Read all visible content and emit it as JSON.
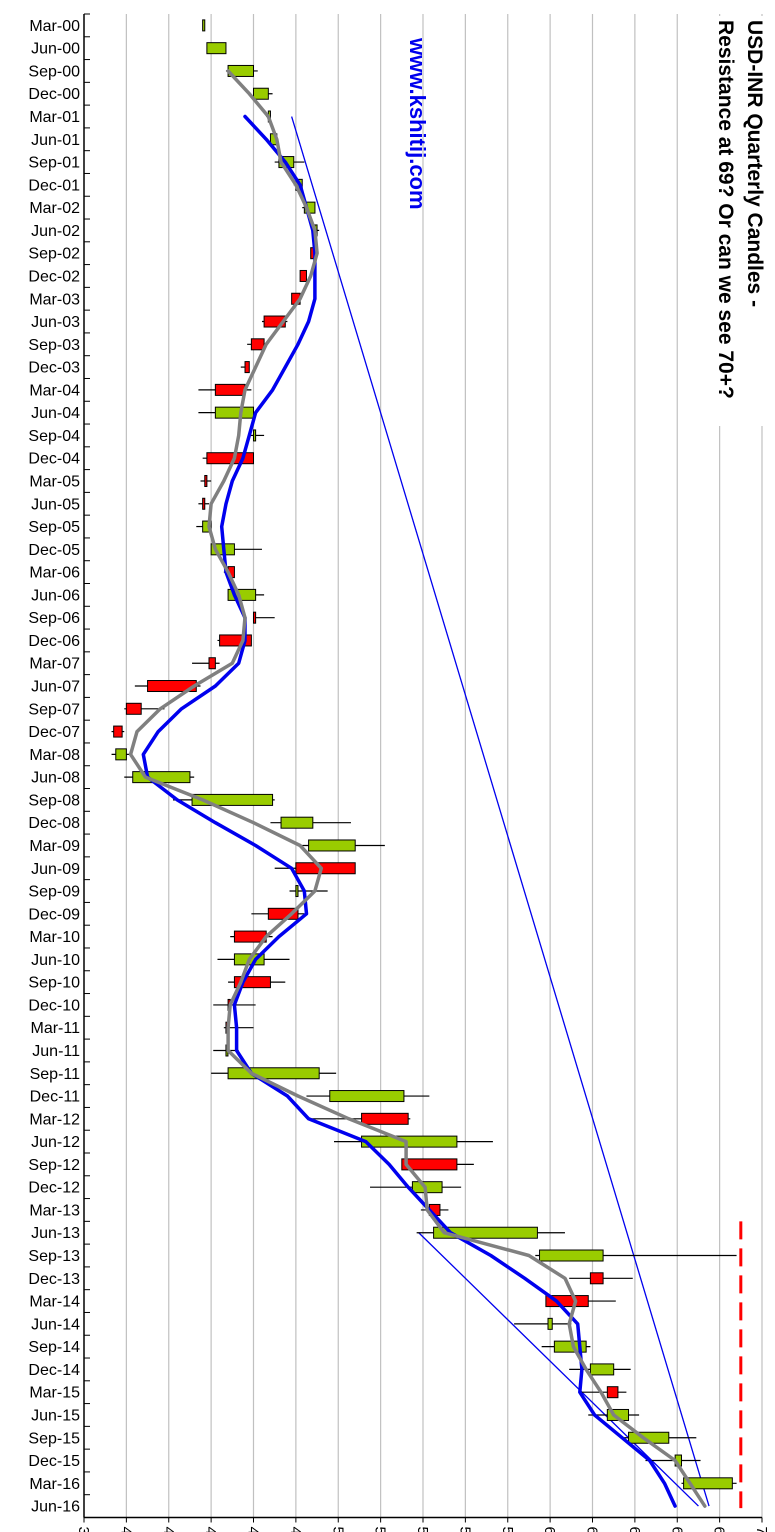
{
  "chart_data": {
    "type": "candlestick",
    "title_line1": "USD-INR Quarterly Candles -",
    "title_line2": "Resistance at 69? Or can we see 70+?",
    "website": "www.kshitij.com",
    "value_axis": {
      "min": 38,
      "max": 70,
      "step": 2,
      "ticks": [
        38,
        40,
        42,
        44,
        46,
        48,
        50,
        52,
        54,
        56,
        58,
        60,
        62,
        64,
        66,
        68,
        70
      ]
    },
    "quarters": [
      "Mar-00",
      "Jun-00",
      "Sep-00",
      "Dec-00",
      "Mar-01",
      "Jun-01",
      "Sep-01",
      "Dec-01",
      "Mar-02",
      "Jun-02",
      "Sep-02",
      "Dec-02",
      "Mar-03",
      "Jun-03",
      "Sep-03",
      "Dec-03",
      "Mar-04",
      "Jun-04",
      "Sep-04",
      "Dec-04",
      "Mar-05",
      "Jun-05",
      "Sep-05",
      "Dec-05",
      "Mar-06",
      "Jun-06",
      "Sep-06",
      "Dec-06",
      "Mar-07",
      "Jun-07",
      "Sep-07",
      "Dec-07",
      "Mar-08",
      "Jun-08",
      "Sep-08",
      "Dec-08",
      "Mar-09",
      "Jun-09",
      "Sep-09",
      "Dec-09",
      "Mar-10",
      "Jun-10",
      "Sep-10",
      "Dec-10",
      "Mar-11",
      "Jun-11",
      "Sep-11",
      "Dec-11",
      "Mar-12",
      "Jun-12",
      "Sep-12",
      "Dec-12",
      "Mar-13",
      "Jun-13",
      "Sep-13",
      "Dec-13",
      "Mar-14",
      "Jun-14",
      "Sep-14",
      "Dec-14",
      "Mar-15",
      "Jun-15",
      "Sep-15",
      "Dec-15",
      "Mar-16",
      "Jun-16"
    ],
    "candles": [
      {
        "q": "Mar-00",
        "o": 43.6,
        "h": 43.7,
        "l": 43.6,
        "c": 43.7
      },
      {
        "q": "Jun-00",
        "o": 43.8,
        "h": 44.7,
        "l": 43.8,
        "c": 44.7
      },
      {
        "q": "Sep-00",
        "o": 44.8,
        "h": 46.2,
        "l": 44.7,
        "c": 46.0
      },
      {
        "q": "Dec-00",
        "o": 46.0,
        "h": 46.9,
        "l": 46.0,
        "c": 46.7
      },
      {
        "q": "Mar-01",
        "o": 46.7,
        "h": 46.8,
        "l": 46.6,
        "c": 46.8
      },
      {
        "q": "Jun-01",
        "o": 46.8,
        "h": 47.1,
        "l": 46.8,
        "c": 47.1
      },
      {
        "q": "Sep-01",
        "o": 47.2,
        "h": 48.4,
        "l": 47.0,
        "c": 47.9
      },
      {
        "q": "Dec-01",
        "o": 48.0,
        "h": 48.3,
        "l": 47.9,
        "c": 48.3
      },
      {
        "q": "Mar-02",
        "o": 48.4,
        "h": 48.9,
        "l": 48.3,
        "c": 48.9
      },
      {
        "q": "Jun-02",
        "o": 48.9,
        "h": 49.1,
        "l": 48.8,
        "c": 49.0
      },
      {
        "q": "Sep-02",
        "o": 48.9,
        "h": 49.0,
        "l": 48.7,
        "c": 48.7
      },
      {
        "q": "Dec-02",
        "o": 48.5,
        "h": 48.5,
        "l": 48.2,
        "c": 48.2
      },
      {
        "q": "Mar-03",
        "o": 48.2,
        "h": 48.2,
        "l": 47.8,
        "c": 47.8
      },
      {
        "q": "Jun-03",
        "o": 47.5,
        "h": 47.6,
        "l": 46.4,
        "c": 46.5
      },
      {
        "q": "Sep-03",
        "o": 46.5,
        "h": 46.6,
        "l": 45.7,
        "c": 45.9
      },
      {
        "q": "Dec-03",
        "o": 45.8,
        "h": 45.8,
        "l": 45.4,
        "c": 45.6
      },
      {
        "q": "Mar-04",
        "o": 45.6,
        "h": 45.9,
        "l": 43.4,
        "c": 44.2
      },
      {
        "q": "Jun-04",
        "o": 44.2,
        "h": 46.1,
        "l": 43.4,
        "c": 46.0
      },
      {
        "q": "Sep-04",
        "o": 46.0,
        "h": 46.5,
        "l": 45.8,
        "c": 46.1
      },
      {
        "q": "Dec-04",
        "o": 46.0,
        "h": 46.0,
        "l": 43.6,
        "c": 43.8
      },
      {
        "q": "Mar-05",
        "o": 43.8,
        "h": 44.0,
        "l": 43.5,
        "c": 43.7
      },
      {
        "q": "Jun-05",
        "o": 43.7,
        "h": 43.9,
        "l": 43.4,
        "c": 43.6
      },
      {
        "q": "Sep-05",
        "o": 43.6,
        "h": 44.0,
        "l": 43.3,
        "c": 44.0
      },
      {
        "q": "Dec-05",
        "o": 44.0,
        "h": 46.4,
        "l": 44.0,
        "c": 45.1
      },
      {
        "q": "Mar-06",
        "o": 45.1,
        "h": 45.1,
        "l": 44.6,
        "c": 44.8
      },
      {
        "q": "Jun-06",
        "o": 44.8,
        "h": 46.5,
        "l": 44.8,
        "c": 46.1
      },
      {
        "q": "Sep-06",
        "o": 46.1,
        "h": 47.0,
        "l": 46.0,
        "c": 46.0
      },
      {
        "q": "Dec-06",
        "o": 45.9,
        "h": 45.9,
        "l": 44.3,
        "c": 44.4
      },
      {
        "q": "Mar-07",
        "o": 44.2,
        "h": 44.4,
        "l": 43.1,
        "c": 43.9
      },
      {
        "q": "Jun-07",
        "o": 43.3,
        "h": 43.5,
        "l": 40.4,
        "c": 41.0
      },
      {
        "q": "Sep-07",
        "o": 40.7,
        "h": 41.8,
        "l": 39.9,
        "c": 40.0
      },
      {
        "q": "Dec-07",
        "o": 39.8,
        "h": 39.9,
        "l": 39.3,
        "c": 39.4
      },
      {
        "q": "Mar-08",
        "o": 39.5,
        "h": 40.2,
        "l": 39.3,
        "c": 40.0
      },
      {
        "q": "Jun-08",
        "o": 40.3,
        "h": 43.2,
        "l": 39.9,
        "c": 43.0
      },
      {
        "q": "Sep-08",
        "o": 43.1,
        "h": 47.0,
        "l": 42.2,
        "c": 46.9
      },
      {
        "q": "Dec-08",
        "o": 47.3,
        "h": 50.6,
        "l": 46.8,
        "c": 48.8
      },
      {
        "q": "Mar-09",
        "o": 48.6,
        "h": 52.2,
        "l": 48.3,
        "c": 50.8
      },
      {
        "q": "Jun-09",
        "o": 50.8,
        "h": 50.8,
        "l": 47.0,
        "c": 48.0
      },
      {
        "q": "Sep-09",
        "o": 48.0,
        "h": 49.5,
        "l": 47.7,
        "c": 48.1
      },
      {
        "q": "Dec-09",
        "o": 48.1,
        "h": 48.4,
        "l": 45.9,
        "c": 46.7
      },
      {
        "q": "Mar-10",
        "o": 46.6,
        "h": 46.9,
        "l": 44.9,
        "c": 45.1
      },
      {
        "q": "Jun-10",
        "o": 45.1,
        "h": 47.7,
        "l": 44.3,
        "c": 46.5
      },
      {
        "q": "Sep-10",
        "o": 46.8,
        "h": 47.5,
        "l": 44.8,
        "c": 45.1
      },
      {
        "q": "Dec-10",
        "o": 44.9,
        "h": 46.1,
        "l": 44.1,
        "c": 44.8
      },
      {
        "q": "Mar-11",
        "o": 44.8,
        "h": 46.0,
        "l": 44.6,
        "c": 44.7
      },
      {
        "q": "Jun-11",
        "o": 44.7,
        "h": 45.3,
        "l": 44.1,
        "c": 44.7
      },
      {
        "q": "Sep-11",
        "o": 44.8,
        "h": 49.9,
        "l": 44.0,
        "c": 49.1
      },
      {
        "q": "Dec-11",
        "o": 49.6,
        "h": 54.3,
        "l": 48.5,
        "c": 53.1
      },
      {
        "q": "Mar-12",
        "o": 53.3,
        "h": 53.4,
        "l": 48.6,
        "c": 51.1
      },
      {
        "q": "Jun-12",
        "o": 51.1,
        "h": 57.3,
        "l": 49.8,
        "c": 55.6
      },
      {
        "q": "Sep-12",
        "o": 55.6,
        "h": 56.4,
        "l": 53.2,
        "c": 53.0
      },
      {
        "q": "Dec-12",
        "o": 53.5,
        "h": 55.8,
        "l": 51.5,
        "c": 54.9
      },
      {
        "q": "Mar-13",
        "o": 54.8,
        "h": 55.2,
        "l": 53.9,
        "c": 54.3
      },
      {
        "q": "Jun-13",
        "o": 54.5,
        "h": 60.7,
        "l": 53.7,
        "c": 59.4
      },
      {
        "q": "Sep-13",
        "o": 59.5,
        "h": 68.8,
        "l": 59.3,
        "c": 62.5
      },
      {
        "q": "Dec-13",
        "o": 62.5,
        "h": 63.9,
        "l": 60.9,
        "c": 61.9
      },
      {
        "q": "Mar-14",
        "o": 61.8,
        "h": 63.1,
        "l": 59.8,
        "c": 59.8
      },
      {
        "q": "Jun-14",
        "o": 59.9,
        "h": 61.0,
        "l": 58.3,
        "c": 60.1
      },
      {
        "q": "Sep-14",
        "o": 60.2,
        "h": 61.9,
        "l": 59.6,
        "c": 61.7
      },
      {
        "q": "Dec-14",
        "o": 61.9,
        "h": 63.8,
        "l": 60.9,
        "c": 63.0
      },
      {
        "q": "Mar-15",
        "o": 63.2,
        "h": 63.6,
        "l": 61.4,
        "c": 62.7
      },
      {
        "q": "Jun-15",
        "o": 62.7,
        "h": 64.2,
        "l": 61.8,
        "c": 63.7
      },
      {
        "q": "Sep-15",
        "o": 63.7,
        "h": 66.9,
        "l": 63.4,
        "c": 65.6
      },
      {
        "q": "Dec-15",
        "o": 65.9,
        "h": 67.1,
        "l": 64.5,
        "c": 66.2
      },
      {
        "q": "Mar-16",
        "o": 66.3,
        "h": 68.8,
        "l": 66.2,
        "c": 68.6
      },
      {
        "q": "Jun-16",
        "o": null,
        "h": null,
        "l": null,
        "c": null
      }
    ],
    "avg_line_gray": [
      [
        "Sep-00",
        44.8
      ],
      [
        "Dec-00",
        45.8
      ],
      [
        "Mar-01",
        46.7
      ],
      [
        "Jun-01",
        47.1
      ],
      [
        "Sep-01",
        47.3
      ],
      [
        "Dec-01",
        48.0
      ],
      [
        "Mar-02",
        48.5
      ],
      [
        "Jun-02",
        48.9
      ],
      [
        "Sep-02",
        49.0
      ],
      [
        "Dec-02",
        48.7
      ],
      [
        "Mar-03",
        48.2
      ],
      [
        "Jun-03",
        47.4
      ],
      [
        "Sep-03",
        46.6
      ],
      [
        "Dec-03",
        46.1
      ],
      [
        "Mar-04",
        45.6
      ],
      [
        "Jun-04",
        45.4
      ],
      [
        "Sep-04",
        45.3
      ],
      [
        "Dec-04",
        45.1
      ],
      [
        "Mar-05",
        44.6
      ],
      [
        "Jun-05",
        44.0
      ],
      [
        "Sep-05",
        43.9
      ],
      [
        "Dec-05",
        44.2
      ],
      [
        "Mar-06",
        44.8
      ],
      [
        "Jun-06",
        45.3
      ],
      [
        "Sep-06",
        45.6
      ],
      [
        "Dec-06",
        45.5
      ],
      [
        "Mar-07",
        45.0
      ],
      [
        "Jun-07",
        43.2
      ],
      [
        "Sep-07",
        41.6
      ],
      [
        "Dec-07",
        40.5
      ],
      [
        "Mar-08",
        40.2
      ],
      [
        "Jun-08",
        40.9
      ],
      [
        "Sep-08",
        43.6
      ],
      [
        "Dec-08",
        46.0
      ],
      [
        "Mar-09",
        48.2
      ],
      [
        "Jun-09",
        49.2
      ],
      [
        "Sep-09",
        48.9
      ],
      [
        "Dec-09",
        47.8
      ],
      [
        "Mar-10",
        46.6
      ],
      [
        "Jun-10",
        45.8
      ],
      [
        "Sep-10",
        45.4
      ],
      [
        "Dec-10",
        44.9
      ],
      [
        "Mar-11",
        44.8
      ],
      [
        "Jun-11",
        44.8
      ],
      [
        "Sep-11",
        45.9
      ],
      [
        "Dec-11",
        48.1
      ],
      [
        "Mar-12",
        50.5
      ],
      [
        "Jun-12",
        53.2
      ],
      [
        "Sep-12",
        53.2
      ],
      [
        "Dec-12",
        54.1
      ],
      [
        "Mar-13",
        54.2
      ],
      [
        "Jun-13",
        55.0
      ],
      [
        "Sep-13",
        59.0
      ],
      [
        "Dec-13",
        60.7
      ],
      [
        "Mar-14",
        61.2
      ],
      [
        "Jun-14",
        60.9
      ],
      [
        "Sep-14",
        61.1
      ],
      [
        "Dec-14",
        61.7
      ],
      [
        "Mar-15",
        62.4
      ],
      [
        "Jun-15",
        63.0
      ],
      [
        "Sep-15",
        64.4
      ],
      [
        "Dec-15",
        65.9
      ],
      [
        "Mar-16",
        66.6
      ],
      [
        "Jun-16",
        67.3
      ]
    ],
    "avg_line_blue": [
      [
        "Mar-01",
        45.6
      ],
      [
        "Jun-01",
        46.6
      ],
      [
        "Sep-01",
        47.5
      ],
      [
        "Dec-01",
        48.2
      ],
      [
        "Mar-02",
        48.5
      ],
      [
        "Jun-02",
        48.8
      ],
      [
        "Sep-02",
        48.9
      ],
      [
        "Dec-02",
        48.9
      ],
      [
        "Mar-03",
        48.9
      ],
      [
        "Jun-03",
        48.6
      ],
      [
        "Sep-03",
        48.1
      ],
      [
        "Dec-03",
        47.5
      ],
      [
        "Mar-04",
        46.9
      ],
      [
        "Jun-04",
        46.1
      ],
      [
        "Sep-04",
        45.8
      ],
      [
        "Dec-04",
        45.5
      ],
      [
        "Mar-05",
        45.0
      ],
      [
        "Jun-05",
        44.7
      ],
      [
        "Sep-05",
        44.5
      ],
      [
        "Dec-05",
        44.6
      ],
      [
        "Mar-06",
        44.7
      ],
      [
        "Jun-06",
        45.1
      ],
      [
        "Sep-06",
        45.6
      ],
      [
        "Dec-06",
        45.6
      ],
      [
        "Mar-07",
        45.3
      ],
      [
        "Jun-07",
        44.2
      ],
      [
        "Sep-07",
        42.6
      ],
      [
        "Dec-07",
        41.5
      ],
      [
        "Mar-08",
        40.8
      ],
      [
        "Jun-08",
        41.0
      ],
      [
        "Sep-08",
        42.4
      ],
      [
        "Dec-08",
        44.2
      ],
      [
        "Mar-09",
        46.1
      ],
      [
        "Jun-09",
        47.8
      ],
      [
        "Sep-09",
        48.4
      ],
      [
        "Dec-09",
        48.5
      ],
      [
        "Mar-10",
        47.2
      ],
      [
        "Jun-10",
        46.1
      ],
      [
        "Sep-10",
        45.5
      ],
      [
        "Dec-10",
        45.1
      ],
      [
        "Mar-11",
        45.2
      ],
      [
        "Jun-11",
        45.2
      ],
      [
        "Sep-11",
        45.9
      ],
      [
        "Dec-11",
        47.6
      ],
      [
        "Mar-12",
        48.6
      ],
      [
        "Jun-12",
        51.3
      ],
      [
        "Sep-12",
        52.4
      ],
      [
        "Dec-12",
        53.3
      ],
      [
        "Mar-13",
        54.3
      ],
      [
        "Jun-13",
        55.3
      ],
      [
        "Sep-13",
        57.2
      ],
      [
        "Dec-13",
        58.8
      ],
      [
        "Mar-14",
        60.3
      ],
      [
        "Jun-14",
        61.3
      ],
      [
        "Sep-14",
        61.4
      ],
      [
        "Dec-14",
        61.5
      ],
      [
        "Mar-15",
        61.4
      ],
      [
        "Jun-15",
        62.1
      ],
      [
        "Sep-15",
        63.4
      ],
      [
        "Dec-15",
        64.7
      ],
      [
        "Mar-16",
        65.4
      ],
      [
        "Jun-16",
        65.9
      ]
    ],
    "trend_lines": [
      {
        "from": [
          "Mar-01",
          47.8
        ],
        "to": [
          "Jun-16",
          67.5
        ]
      },
      {
        "from": [
          "Jun-13",
          53.8
        ],
        "to": [
          "Jun-16",
          67.0
        ]
      }
    ],
    "resistance": {
      "value": 69.0,
      "from": "Jun-13",
      "to": "Jun-16"
    },
    "colors": {
      "up": "#99cc00",
      "down": "#ff0000",
      "gray_line": "#808080",
      "blue_line": "#0000ee",
      "grid": "#c0c0c0",
      "resistance": "#ff0000"
    }
  }
}
